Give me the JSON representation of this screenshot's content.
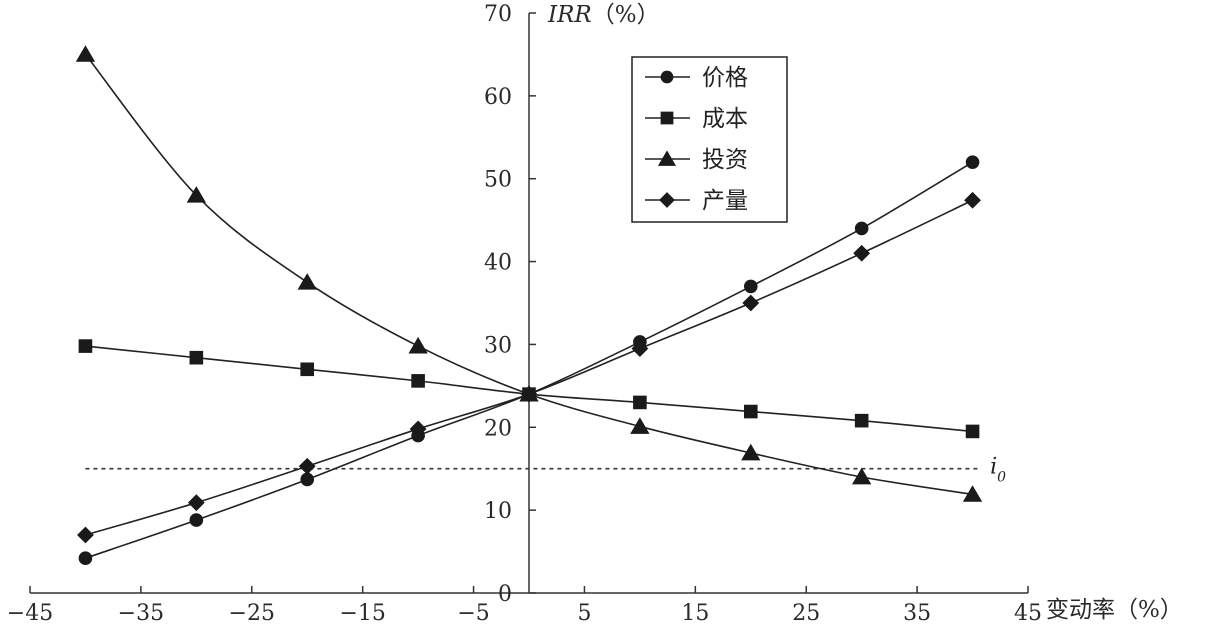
{
  "chart_data": {
    "type": "line",
    "title": "",
    "xlabel": "变动率（%）",
    "ylabel_italic": "IRR",
    "ylabel_unit": "（%）",
    "xlim": [
      -45,
      45
    ],
    "ylim": [
      0,
      70
    ],
    "x_ticks": [
      -45,
      -35,
      -25,
      -15,
      -5,
      5,
      15,
      25,
      35,
      45
    ],
    "y_ticks": [
      0,
      10,
      20,
      30,
      40,
      50,
      60,
      70
    ],
    "grid": false,
    "legend_position": "top-right",
    "reference_line": {
      "label": "i",
      "label_subscript": "0",
      "y": 15,
      "style": "dashed"
    },
    "x": [
      -40,
      -30,
      -20,
      -10,
      0,
      10,
      20,
      30,
      40
    ],
    "series": [
      {
        "name": "价格",
        "marker": "circle",
        "values": [
          4.2,
          8.8,
          13.7,
          19.0,
          24.0,
          30.3,
          37.0,
          44.0,
          52.0
        ]
      },
      {
        "name": "成本",
        "marker": "square",
        "values": [
          29.8,
          28.4,
          27.0,
          25.6,
          24.0,
          23.0,
          21.9,
          20.8,
          19.5
        ]
      },
      {
        "name": "投资",
        "marker": "triangle",
        "values": [
          65.0,
          48.0,
          37.5,
          29.8,
          24.0,
          20.1,
          16.9,
          14.0,
          11.9
        ]
      },
      {
        "name": "产量",
        "marker": "diamond",
        "values": [
          7.0,
          10.9,
          15.3,
          19.8,
          24.0,
          29.5,
          35.0,
          41.0,
          47.4
        ]
      }
    ]
  }
}
